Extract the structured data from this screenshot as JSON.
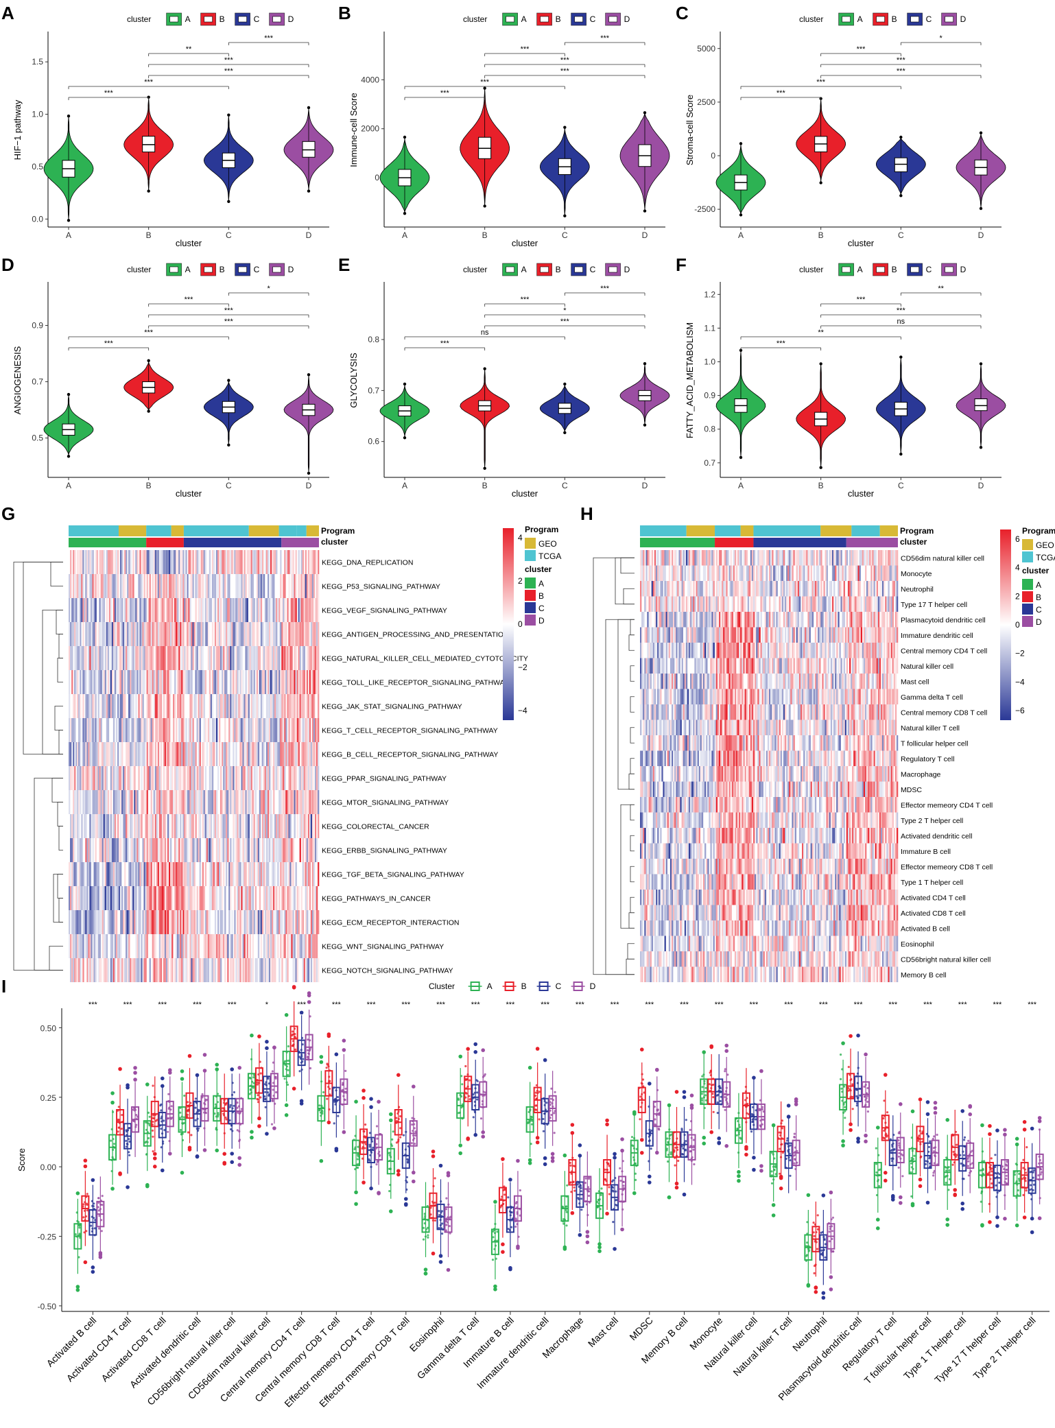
{
  "colors": {
    "A": "#2db253",
    "B": "#e8202a",
    "C": "#2a3896",
    "D": "#9b4ea2",
    "GEO": "#d8b936",
    "TCGA": "#4fc4d1",
    "heat_low": "#2a3896",
    "heat_high": "#e8202a"
  },
  "violin_panels": [
    {
      "letter": "A",
      "ylabel": "HIF−1 pathway",
      "ticks": [
        "0.0",
        "0.5",
        "1.0",
        "1.5"
      ],
      "tick_values": [
        0,
        0.5,
        1.0,
        1.5
      ],
      "ylim": [
        -0.05,
        1.75
      ],
      "chart_data": {
        "type": "violin",
        "categories": [
          "A",
          "B",
          "C",
          "D"
        ],
        "medians": [
          0.48,
          0.71,
          0.56,
          0.66
        ],
        "q1": [
          0.4,
          0.64,
          0.49,
          0.59
        ],
        "q3": [
          0.56,
          0.79,
          0.63,
          0.74
        ],
        "lo": [
          0.0,
          0.28,
          0.18,
          0.28
        ],
        "hi": [
          0.97,
          1.15,
          0.98,
          1.05
        ]
      },
      "comparisons": [
        {
          "pair": [
            2,
            3
          ],
          "label": "***"
        },
        {
          "pair": [
            1,
            2
          ],
          "label": "**"
        },
        {
          "pair": [
            1,
            3
          ],
          "label": "***"
        },
        {
          "pair": [
            1,
            4
          ],
          "label": "***"
        },
        {
          "pair": [
            0,
            2
          ],
          "label": "***"
        },
        {
          "pair": [
            0,
            1
          ],
          "label": "***"
        }
      ]
    },
    {
      "letter": "B",
      "ylabel": "Immune-cell Score",
      "ticks": [
        "0",
        "2000",
        "4000"
      ],
      "tick_values": [
        0,
        2000,
        4000
      ],
      "ylim": [
        -1900,
        5800
      ],
      "chart_data": {
        "type": "violin",
        "categories": [
          "A",
          "B",
          "C",
          "D"
        ],
        "medians": [
          0,
          1200,
          450,
          900
        ],
        "q1": [
          -330,
          780,
          130,
          460
        ],
        "q3": [
          340,
          1650,
          780,
          1350
        ],
        "lo": [
          -1400,
          -1100,
          -1500,
          -1300
        ],
        "hi": [
          1600,
          3600,
          2000,
          2600
        ]
      },
      "comparisons": [
        {
          "pair": [
            2,
            3
          ],
          "label": "***"
        },
        {
          "pair": [
            1,
            2
          ],
          "label": "***"
        },
        {
          "pair": [
            1,
            3
          ],
          "label": "***"
        },
        {
          "pair": [
            1,
            4
          ],
          "label": "***"
        },
        {
          "pair": [
            0,
            2
          ],
          "label": "***"
        },
        {
          "pair": [
            0,
            1
          ],
          "label": "***"
        }
      ]
    },
    {
      "letter": "C",
      "ylabel": "Stroma-cell Score",
      "ticks": [
        "-2500",
        "0",
        "2500",
        "5000"
      ],
      "tick_values": [
        -2500,
        0,
        2500,
        5000
      ],
      "ylim": [
        -3200,
        5600
      ],
      "chart_data": {
        "type": "violin",
        "categories": [
          "A",
          "B",
          "C",
          "D"
        ],
        "medians": [
          -1250,
          550,
          -400,
          -550
        ],
        "q1": [
          -1600,
          180,
          -750,
          -900
        ],
        "q3": [
          -900,
          900,
          -100,
          -200
        ],
        "lo": [
          -2700,
          -1200,
          -1800,
          -2400
        ],
        "hi": [
          500,
          2600,
          800,
          1000
        ]
      },
      "comparisons": [
        {
          "pair": [
            2,
            3
          ],
          "label": "*"
        },
        {
          "pair": [
            1,
            2
          ],
          "label": "***"
        },
        {
          "pair": [
            1,
            3
          ],
          "label": "***"
        },
        {
          "pair": [
            1,
            4
          ],
          "label": "***"
        },
        {
          "pair": [
            0,
            2
          ],
          "label": "***"
        },
        {
          "pair": [
            0,
            1
          ],
          "label": "***"
        }
      ]
    },
    {
      "letter": "D",
      "ylabel": "ANGIOGENESIS",
      "ticks": [
        "0.5",
        "0.7",
        "0.9"
      ],
      "tick_values": [
        0.5,
        0.7,
        0.9
      ],
      "ylim": [
        0.37,
        1.04
      ],
      "chart_data": {
        "type": "violin",
        "categories": [
          "A",
          "B",
          "C",
          "D"
        ],
        "medians": [
          0.53,
          0.68,
          0.61,
          0.6
        ],
        "q1": [
          0.51,
          0.66,
          0.59,
          0.58
        ],
        "q3": [
          0.55,
          0.7,
          0.63,
          0.62
        ],
        "lo": [
          0.44,
          0.6,
          0.48,
          0.38
        ],
        "hi": [
          0.65,
          0.77,
          0.7,
          0.72
        ]
      },
      "comparisons": [
        {
          "pair": [
            2,
            3
          ],
          "label": "*"
        },
        {
          "pair": [
            1,
            2
          ],
          "label": "***"
        },
        {
          "pair": [
            1,
            3
          ],
          "label": "***"
        },
        {
          "pair": [
            1,
            4
          ],
          "label": "***"
        },
        {
          "pair": [
            0,
            2
          ],
          "label": "***"
        },
        {
          "pair": [
            0,
            1
          ],
          "label": "***"
        }
      ]
    },
    {
      "letter": "E",
      "ylabel": "GLYCOLYSIS",
      "ticks": [
        "0.6",
        "0.7",
        "0.8"
      ],
      "tick_values": [
        0.6,
        0.7,
        0.8
      ],
      "ylim": [
        0.535,
        0.905
      ],
      "chart_data": {
        "type": "violin",
        "categories": [
          "A",
          "B",
          "C",
          "D"
        ],
        "medians": [
          0.66,
          0.67,
          0.665,
          0.69
        ],
        "q1": [
          0.65,
          0.66,
          0.655,
          0.68
        ],
        "q3": [
          0.67,
          0.68,
          0.675,
          0.7
        ],
        "lo": [
          0.61,
          0.55,
          0.62,
          0.635
        ],
        "hi": [
          0.71,
          0.74,
          0.71,
          0.75
        ]
      },
      "comparisons": [
        {
          "pair": [
            2,
            3
          ],
          "label": "***"
        },
        {
          "pair": [
            1,
            2
          ],
          "label": "***"
        },
        {
          "pair": [
            1,
            3
          ],
          "label": "*"
        },
        {
          "pair": [
            1,
            4
          ],
          "label": "***"
        },
        {
          "pair": [
            0,
            2
          ],
          "label": "ns"
        },
        {
          "pair": [
            0,
            1
          ],
          "label": "***"
        }
      ]
    },
    {
      "letter": "F",
      "ylabel": "FATTY_ACID_METABOLISM",
      "ticks": [
        "0.7",
        "0.8",
        "0.9",
        "1.0",
        "1.1",
        "1.2"
      ],
      "tick_values": [
        0.7,
        0.8,
        0.9,
        1.0,
        1.1,
        1.2
      ],
      "ylim": [
        0.665,
        1.225
      ],
      "chart_data": {
        "type": "violin",
        "categories": [
          "A",
          "B",
          "C",
          "D"
        ],
        "medians": [
          0.87,
          0.83,
          0.86,
          0.87
        ],
        "q1": [
          0.85,
          0.81,
          0.84,
          0.855
        ],
        "q3": [
          0.89,
          0.85,
          0.88,
          0.89
        ],
        "lo": [
          0.72,
          0.69,
          0.73,
          0.75
        ],
        "hi": [
          1.03,
          0.99,
          1.01,
          0.99
        ]
      },
      "comparisons": [
        {
          "pair": [
            2,
            3
          ],
          "label": "**"
        },
        {
          "pair": [
            1,
            2
          ],
          "label": "***"
        },
        {
          "pair": [
            1,
            3
          ],
          "label": "***"
        },
        {
          "pair": [
            1,
            4
          ],
          "label": "ns"
        },
        {
          "pair": [
            0,
            2
          ],
          "label": "**"
        },
        {
          "pair": [
            0,
            1
          ],
          "label": "***"
        }
      ]
    }
  ],
  "violin_xlabel": "cluster",
  "legend_title": "cluster",
  "cluster_labels": [
    "A",
    "B",
    "C",
    "D"
  ],
  "heatmap_G": {
    "letter": "G",
    "program_label": "Program",
    "cluster_label": "cluster",
    "rows": [
      "KEGG_DNA_REPLICATION",
      "KEGG_P53_SIGNALING_PATHWAY",
      "KEGG_VEGF_SIGNALING_PATHWAY",
      "KEGG_ANTIGEN_PROCESSING_AND_PRESENTATION",
      "KEGG_NATURAL_KILLER_CELL_MEDIATED_CYTOTOXICITY",
      "KEGG_TOLL_LIKE_RECEPTOR_SIGNALING_PATHWAY",
      "KEGG_JAK_STAT_SIGNALING_PATHWAY",
      "KEGG_T_CELL_RECEPTOR_SIGNALING_PATHWAY",
      "KEGG_B_CELL_RECEPTOR_SIGNALING_PATHWAY",
      "KEGG_PPAR_SIGNALING_PATHWAY",
      "KEGG_MTOR_SIGNALING_PATHWAY",
      "KEGG_COLORECTAL_CANCER",
      "KEGG_ERBB_SIGNALING_PATHWAY",
      "KEGG_TGF_BETA_SIGNALING_PATHWAY",
      "KEGG_PATHWAYS_IN_CANCER",
      "KEGG_ECM_RECEPTOR_INTERACTION",
      "KEGG_WNT_SIGNALING_PATHWAY",
      "KEGG_NOTCH_SIGNALING_PATHWAY"
    ],
    "scale_ticks": [
      "4",
      "2",
      "0",
      "−2",
      "−4"
    ],
    "scale_range": [
      -5,
      5
    ],
    "legend_program_title": "Program",
    "legend_program_items": [
      "GEO",
      "TCGA"
    ],
    "legend_cluster_title": "cluster"
  },
  "heatmap_H": {
    "letter": "H",
    "program_label": "Program",
    "cluster_label": "cluster",
    "rows": [
      "CD56dim natural killer cell",
      "Monocyte",
      "Neutrophil",
      "Type 17 T helper cell",
      "Plasmacytoid dendritic cell",
      "Immature dendritic cell",
      "Central memory CD4 T cell",
      "Natural killer cell",
      "Mast cell",
      "Gamma delta T cell",
      "Central memory CD8 T cell",
      "Natural killer T cell",
      "T follicular helper cell",
      "Regulatory T cell",
      "Macrophage",
      "MDSC",
      "Effector memeory CD4 T cell",
      "Type 2 T helper cell",
      "Activated dendritic cell",
      "Immature  B cell",
      "Effector memeory CD8 T cell",
      "Type 1 T helper cell",
      "Activated CD4 T cell",
      "Activated CD8 T cell",
      "Activated B cell",
      "Eosinophil",
      "CD56bright natural killer cell",
      "Memory B cell"
    ],
    "scale_ticks": [
      "6",
      "4",
      "2",
      "0",
      "−2",
      "−4",
      "−6"
    ],
    "scale_range": [
      -6,
      6
    ],
    "legend_program_title": "Program",
    "legend_program_items": [
      "GEO",
      "TCGA"
    ],
    "legend_cluster_title": "cluster"
  },
  "boxplot_I": {
    "letter": "I",
    "legend_title": "Cluster",
    "ylabel": "Score",
    "ticks": [
      "-0.50",
      "-0.25",
      "0.00",
      "0.25",
      "0.50"
    ],
    "tick_values": [
      -0.5,
      -0.25,
      0,
      0.25,
      0.5
    ],
    "ylim": [
      -0.52,
      0.57
    ],
    "chart_data": {
      "type": "boxplot",
      "categories": [
        "Activated B cell",
        "Activated CD4 T cell",
        "Activated CD8 T cell",
        "Activated dendritic cell",
        "CD56bright natural killer cell",
        "CD56dim natural killer cell",
        "Central memory CD4 T cell",
        "Central memory CD8 T cell",
        "Effector memeory CD4 T cell",
        "Effector memeory CD8 T cell",
        "Eosinophil",
        "Gamma delta T cell",
        "Immature  B cell",
        "Immature dendritic cell",
        "Macrophage",
        "Mast cell",
        "MDSC",
        "Memory B cell",
        "Monocyte",
        "Natural killer cell",
        "Natural killer T cell",
        "Neutrophil",
        "Plasmacytoid dendritic cell",
        "Regulatory T cell",
        "T follicular helper cell",
        "Type 1 T helper cell",
        "Type 17 T helper cell",
        "Type 2 T helper cell"
      ],
      "significance": [
        "***",
        "***",
        "***",
        "***",
        "***",
        "*",
        "***",
        "***",
        "***",
        "***",
        "***",
        "***",
        "***",
        "***",
        "***",
        "***",
        "***",
        "***",
        "***",
        "***",
        "***",
        "***",
        "***",
        "***",
        "***",
        "***",
        "***",
        "***"
      ],
      "medians": {
        "A": [
          -0.25,
          0.07,
          0.12,
          0.17,
          0.21,
          0.29,
          0.37,
          0.21,
          0.05,
          0.02,
          -0.19,
          0.22,
          -0.27,
          0.17,
          -0.15,
          -0.14,
          0.05,
          0.08,
          0.27,
          0.13,
          0.01,
          -0.29,
          0.25,
          -0.03,
          0.02,
          -0.02,
          -0.03,
          -0.06
        ],
        "B": [
          -0.15,
          0.16,
          0.19,
          0.22,
          0.2,
          0.31,
          0.46,
          0.3,
          0.09,
          0.16,
          -0.14,
          0.28,
          -0.12,
          0.24,
          -0.02,
          -0.02,
          0.24,
          0.08,
          0.27,
          0.22,
          0.1,
          -0.26,
          0.29,
          0.14,
          0.1,
          0.07,
          -0.03,
          -0.03
        ],
        "C": [
          -0.2,
          0.11,
          0.15,
          0.19,
          0.2,
          0.28,
          0.41,
          0.24,
          0.06,
          0.04,
          -0.18,
          0.25,
          -0.19,
          0.2,
          -0.1,
          -0.11,
          0.12,
          0.08,
          0.27,
          0.18,
          0.04,
          -0.29,
          0.28,
          0.05,
          0.04,
          0.03,
          -0.04,
          -0.05
        ],
        "D": [
          -0.17,
          0.17,
          0.19,
          0.21,
          0.2,
          0.29,
          0.43,
          0.27,
          0.07,
          0.12,
          -0.19,
          0.26,
          -0.15,
          0.21,
          -0.08,
          -0.08,
          0.19,
          0.07,
          0.26,
          0.18,
          0.05,
          -0.25,
          0.26,
          0.06,
          0.05,
          0.04,
          -0.02,
          0.0
        ]
      }
    }
  }
}
